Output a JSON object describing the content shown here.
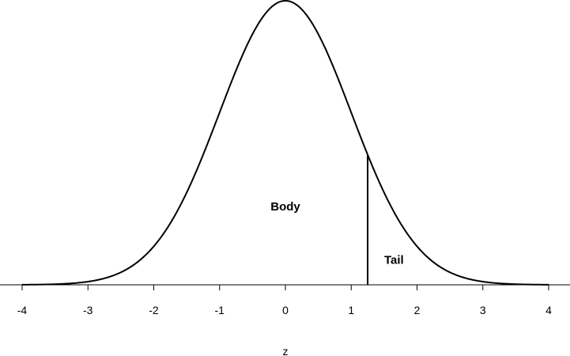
{
  "chart_data": {
    "type": "line",
    "curve": "standard-normal-density",
    "xlabel": "z",
    "ylabel": "",
    "xlim": [
      -4,
      4
    ],
    "ylim": [
      0,
      0.4
    ],
    "x_ticks": [
      -4,
      -3,
      -2,
      -1,
      0,
      1,
      2,
      3,
      4
    ],
    "x_tick_labels": [
      "-4",
      "-3",
      "-2",
      "-1",
      "0",
      "1",
      "2",
      "3",
      "4"
    ],
    "cutoff_z": 1.25,
    "regions": [
      {
        "label": "Body",
        "x": -0.0,
        "y": 0.11
      },
      {
        "label": "Tail",
        "x": 1.65,
        "y": 0.035
      }
    ],
    "grid": false,
    "colors": {
      "line": "#000000",
      "background": "#ffffff"
    }
  }
}
